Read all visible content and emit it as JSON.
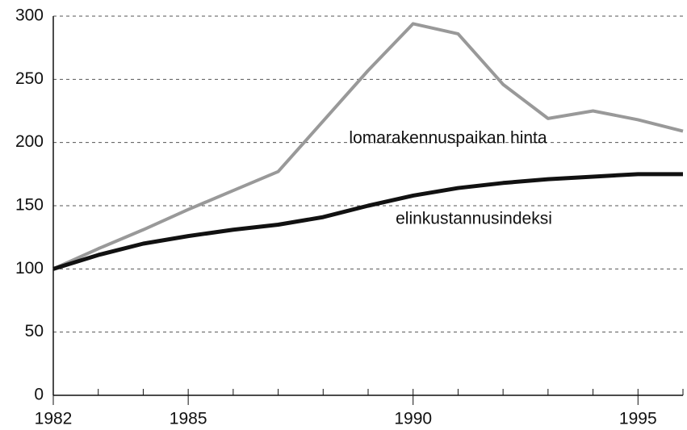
{
  "chart_data": {
    "type": "line",
    "x": [
      1982,
      1983,
      1984,
      1985,
      1986,
      1987,
      1988,
      1989,
      1990,
      1991,
      1992,
      1993,
      1994,
      1995,
      1996
    ],
    "series": [
      {
        "name": "lomarakennuspaikan hinta",
        "color": "#999999",
        "values": [
          100,
          116,
          131,
          147,
          162,
          177,
          217,
          257,
          294,
          286,
          246,
          219,
          225,
          218,
          209
        ]
      },
      {
        "name": "elinkustannusindeksi",
        "color": "#111111",
        "values": [
          100,
          111,
          120,
          126,
          131,
          135,
          141,
          150,
          158,
          164,
          168,
          171,
          173,
          175,
          175
        ]
      }
    ],
    "xlim": [
      1982,
      1996
    ],
    "xticks": [
      1982,
      1985,
      1990,
      1995
    ],
    "ylim": [
      0,
      300
    ],
    "yticks": [
      0,
      50,
      100,
      150,
      200,
      250,
      300
    ],
    "grid": true
  }
}
